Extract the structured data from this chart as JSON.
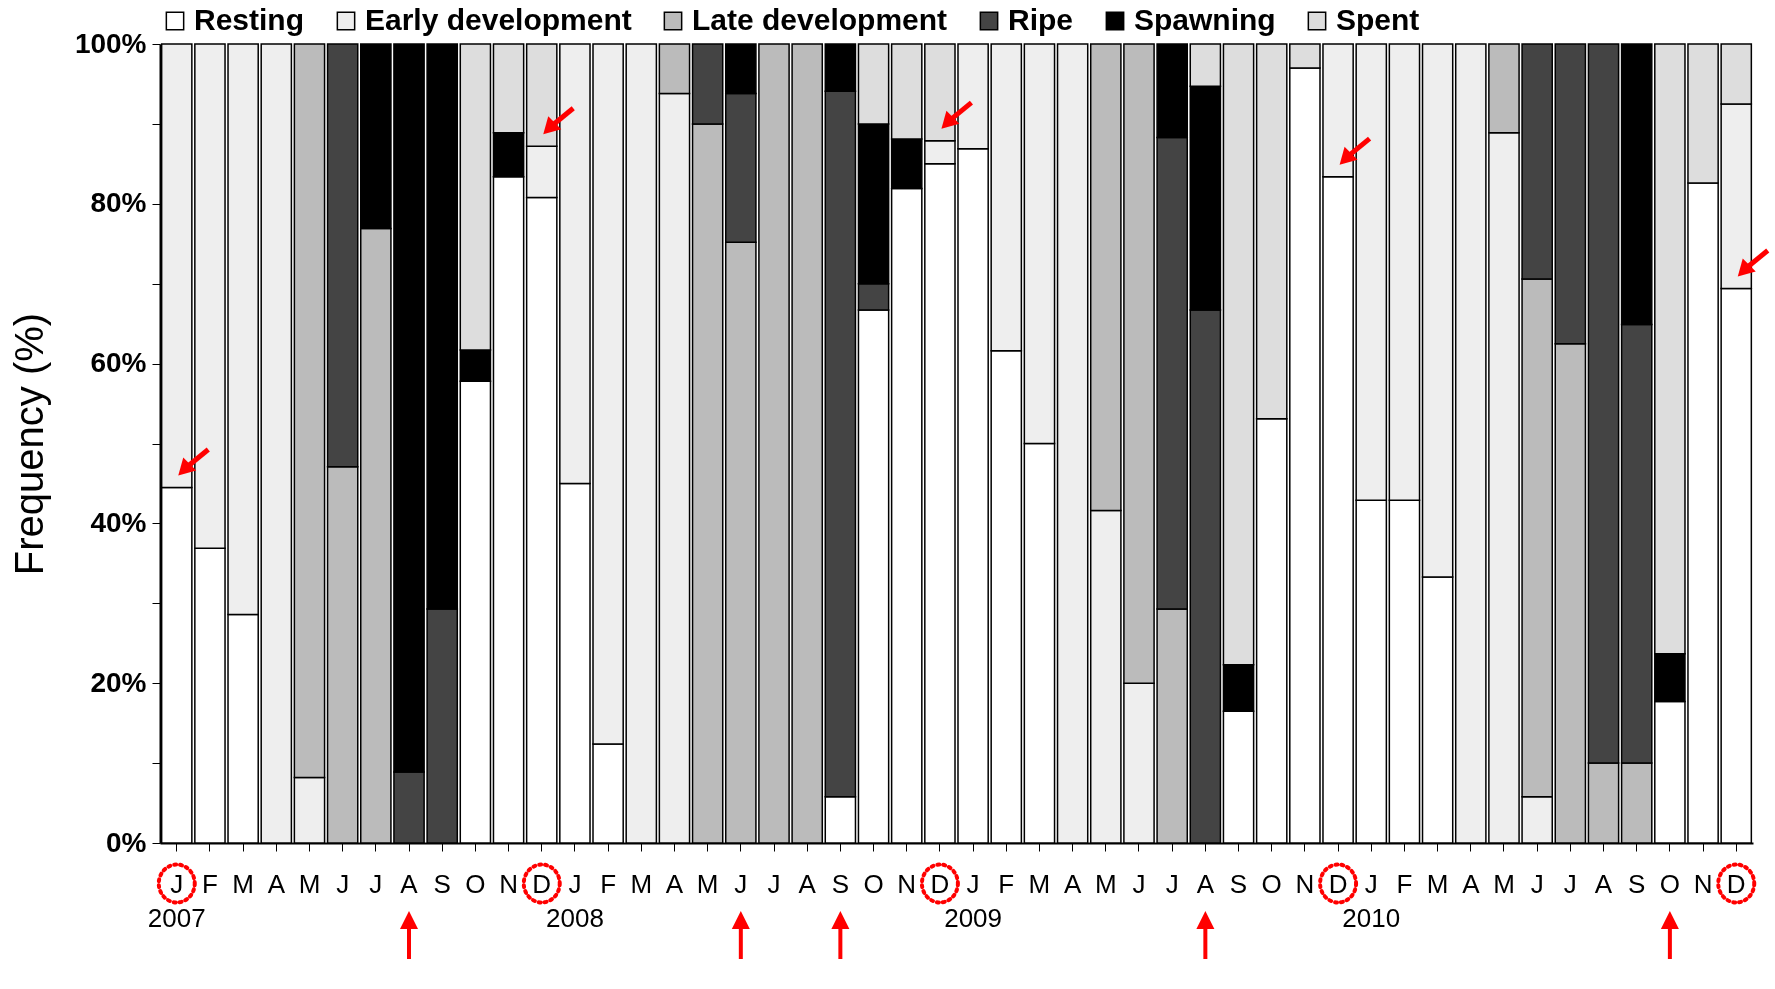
{
  "chart_data": {
    "type": "bar",
    "stacked": true,
    "ylabel": "Frequency (%)",
    "legend": "top",
    "grid": false,
    "categories": [
      "J\n2007",
      "F",
      "M",
      "A",
      "M",
      "J",
      "J",
      "A",
      "S",
      "O",
      "N",
      "D",
      "J\n2008",
      "F",
      "M",
      "A",
      "M",
      "J",
      "J",
      "A",
      "S",
      "O",
      "N",
      "D",
      "J\n2009",
      "F",
      "M",
      "A",
      "M",
      "J",
      "J",
      "A",
      "S",
      "O",
      "N",
      "D",
      "J\n2010",
      "F",
      "M",
      "A",
      "M",
      "J",
      "J",
      "A",
      "S",
      "O",
      "N",
      "D"
    ],
    "ylim": [
      0,
      100
    ],
    "yticks": [
      {
        "value": 0,
        "label": "0%"
      },
      {
        "value": 10,
        "label": null
      },
      {
        "value": 20,
        "label": "20%"
      },
      {
        "value": 30,
        "label": null
      },
      {
        "value": 40,
        "label": "40%"
      },
      {
        "value": 50,
        "label": null
      },
      {
        "value": 60,
        "label": "60%"
      },
      {
        "value": 70,
        "label": null
      },
      {
        "value": 80,
        "label": "80%"
      },
      {
        "value": 90,
        "label": null
      },
      {
        "value": 100,
        "label": "100%"
      }
    ],
    "series": [
      {
        "name": "Resting",
        "color": "#ffffff",
        "values": [
          44.5,
          36.9,
          28.6,
          null,
          null,
          null,
          null,
          null,
          null,
          57.8,
          83.4,
          80.8,
          45.0,
          12.4,
          null,
          null,
          null,
          null,
          null,
          null,
          5.8,
          66.7,
          81.9,
          85.0,
          86.9,
          61.6,
          50.0,
          null,
          null,
          null,
          null,
          null,
          16.5,
          53.1,
          97.0,
          83.4,
          42.9,
          42.9,
          33.3,
          null,
          null,
          null,
          null,
          null,
          null,
          17.7,
          82.6,
          69.4
        ]
      },
      {
        "name": "Early development",
        "color": "#eeeeee",
        "values": [
          55.5,
          63.1,
          71.4,
          100,
          8.2,
          null,
          null,
          null,
          null,
          null,
          null,
          6.4,
          55.0,
          87.6,
          100,
          93.8,
          null,
          null,
          null,
          null,
          null,
          null,
          null,
          2.9,
          13.1,
          38.4,
          50.0,
          100,
          41.6,
          20.0,
          null,
          null,
          null,
          null,
          null,
          16.6,
          57.1,
          57.1,
          66.7,
          100,
          88.9,
          5.8,
          null,
          null,
          null,
          null,
          null,
          23.1
        ]
      },
      {
        "name": "Late development",
        "color": "#bbbbbb",
        "values": [
          null,
          null,
          null,
          null,
          91.8,
          47.1,
          76.9,
          null,
          null,
          null,
          null,
          null,
          null,
          null,
          null,
          6.2,
          90.0,
          75.2,
          100,
          100,
          null,
          null,
          null,
          null,
          null,
          null,
          null,
          null,
          58.4,
          80.0,
          29.3,
          null,
          null,
          null,
          null,
          null,
          null,
          null,
          null,
          null,
          11.1,
          64.8,
          62.5,
          10.0,
          10.0,
          null,
          null,
          null
        ]
      },
      {
        "name": "Ripe",
        "color": "#444444",
        "values": [
          null,
          null,
          null,
          null,
          null,
          52.9,
          null,
          8.9,
          29.3,
          null,
          null,
          null,
          null,
          null,
          null,
          null,
          10.0,
          18.6,
          null,
          null,
          88.3,
          3.3,
          null,
          null,
          null,
          null,
          null,
          null,
          null,
          null,
          59.0,
          66.7,
          null,
          null,
          null,
          null,
          null,
          null,
          null,
          null,
          null,
          29.4,
          37.5,
          90.0,
          54.9,
          null,
          null,
          null
        ]
      },
      {
        "name": "Spawning",
        "color": "#000000",
        "values": [
          null,
          null,
          null,
          null,
          null,
          null,
          23.1,
          91.1,
          70.7,
          3.9,
          5.5,
          null,
          null,
          null,
          null,
          null,
          null,
          6.2,
          null,
          null,
          5.9,
          20.0,
          6.2,
          null,
          null,
          null,
          null,
          null,
          null,
          null,
          11.7,
          28.0,
          5.8,
          null,
          null,
          null,
          null,
          null,
          null,
          null,
          null,
          null,
          null,
          null,
          35.1,
          6.0,
          null,
          null
        ]
      },
      {
        "name": "Spent",
        "color": "#dddddd",
        "values": [
          null,
          null,
          null,
          null,
          null,
          null,
          null,
          null,
          null,
          38.3,
          11.1,
          12.8,
          null,
          null,
          null,
          null,
          null,
          null,
          null,
          null,
          null,
          10.0,
          11.9,
          12.1,
          null,
          null,
          null,
          null,
          null,
          null,
          null,
          5.3,
          77.7,
          46.9,
          3.0,
          null,
          null,
          null,
          null,
          null,
          null,
          null,
          null,
          null,
          null,
          76.3,
          17.4,
          7.5
        ]
      }
    ]
  }
}
